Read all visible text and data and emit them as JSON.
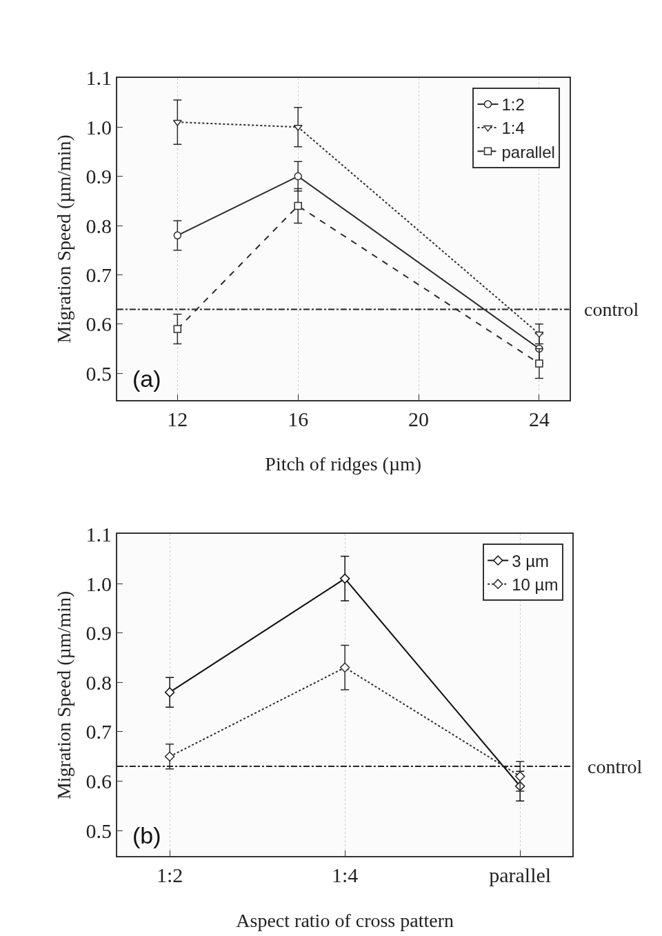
{
  "chart_data": [
    {
      "type": "line",
      "xlabel": "Pitch of ridges (µm)",
      "ylabel": "Migration Speed (µm/min)",
      "x": [
        12,
        16,
        24
      ],
      "xlim": [
        10,
        25
      ],
      "xticks": [
        12,
        16,
        20,
        24
      ],
      "ylim": [
        0.446,
        1.1
      ],
      "yticks": [
        0.5,
        0.6,
        0.7,
        0.8,
        0.9,
        {
          "value": 1.0,
          "label": "1.0"
        },
        1.1
      ],
      "grid": "x",
      "legend": "top right",
      "annotations": [
        "(a)"
      ],
      "ref_lines": [
        {
          "axis": "y",
          "value": 0.63,
          "label": "control",
          "line_style": "dashdot"
        }
      ],
      "series": [
        {
          "name": "1:2",
          "color": "#2b2b2b",
          "values": [
            0.78,
            0.9,
            0.55
          ],
          "errors": [
            0.03,
            0.03,
            0.03
          ],
          "marker": "circle",
          "line_style": "solid"
        },
        {
          "name": "1:4",
          "color": "#2b2b2b",
          "values": [
            1.01,
            1.0,
            0.58
          ],
          "errors": [
            0.045,
            0.04,
            0.02
          ],
          "marker": "triangle",
          "line_style": "dotted"
        },
        {
          "name": "parallel",
          "color": "#2b2b2b",
          "values": [
            0.59,
            0.84,
            0.52
          ],
          "errors": [
            0.03,
            0.035,
            0.03
          ],
          "marker": "square",
          "line_style": "dashed"
        }
      ]
    },
    {
      "type": "line",
      "xlabel": "Aspect ratio of cross pattern",
      "ylabel": "Migration Speed (µm/min)",
      "categories": [
        "1:2",
        "1:4",
        "parallel"
      ],
      "ylim": [
        0.448,
        1.1
      ],
      "yticks": [
        0.5,
        0.6,
        0.7,
        0.8,
        0.9,
        {
          "value": 1.0,
          "label": "1.0"
        },
        1.1
      ],
      "grid": "x",
      "legend": "top right",
      "annotations": [
        "(b)"
      ],
      "ref_lines": [
        {
          "axis": "y",
          "value": 0.63,
          "label": "control",
          "line_style": "dashdot"
        }
      ],
      "series": [
        {
          "name": "3 µm",
          "color": "#111111",
          "values": [
            0.78,
            1.01,
            0.59
          ],
          "errors": [
            0.03,
            0.045,
            0.03
          ],
          "marker": "diamond",
          "line_style": "solid"
        },
        {
          "name": "10 µm",
          "color": "#2b2b2b",
          "values": [
            0.65,
            0.83,
            0.61
          ],
          "errors": [
            0.025,
            0.045,
            0.03
          ],
          "marker": "diamond",
          "line_style": "dotted"
        }
      ]
    }
  ]
}
